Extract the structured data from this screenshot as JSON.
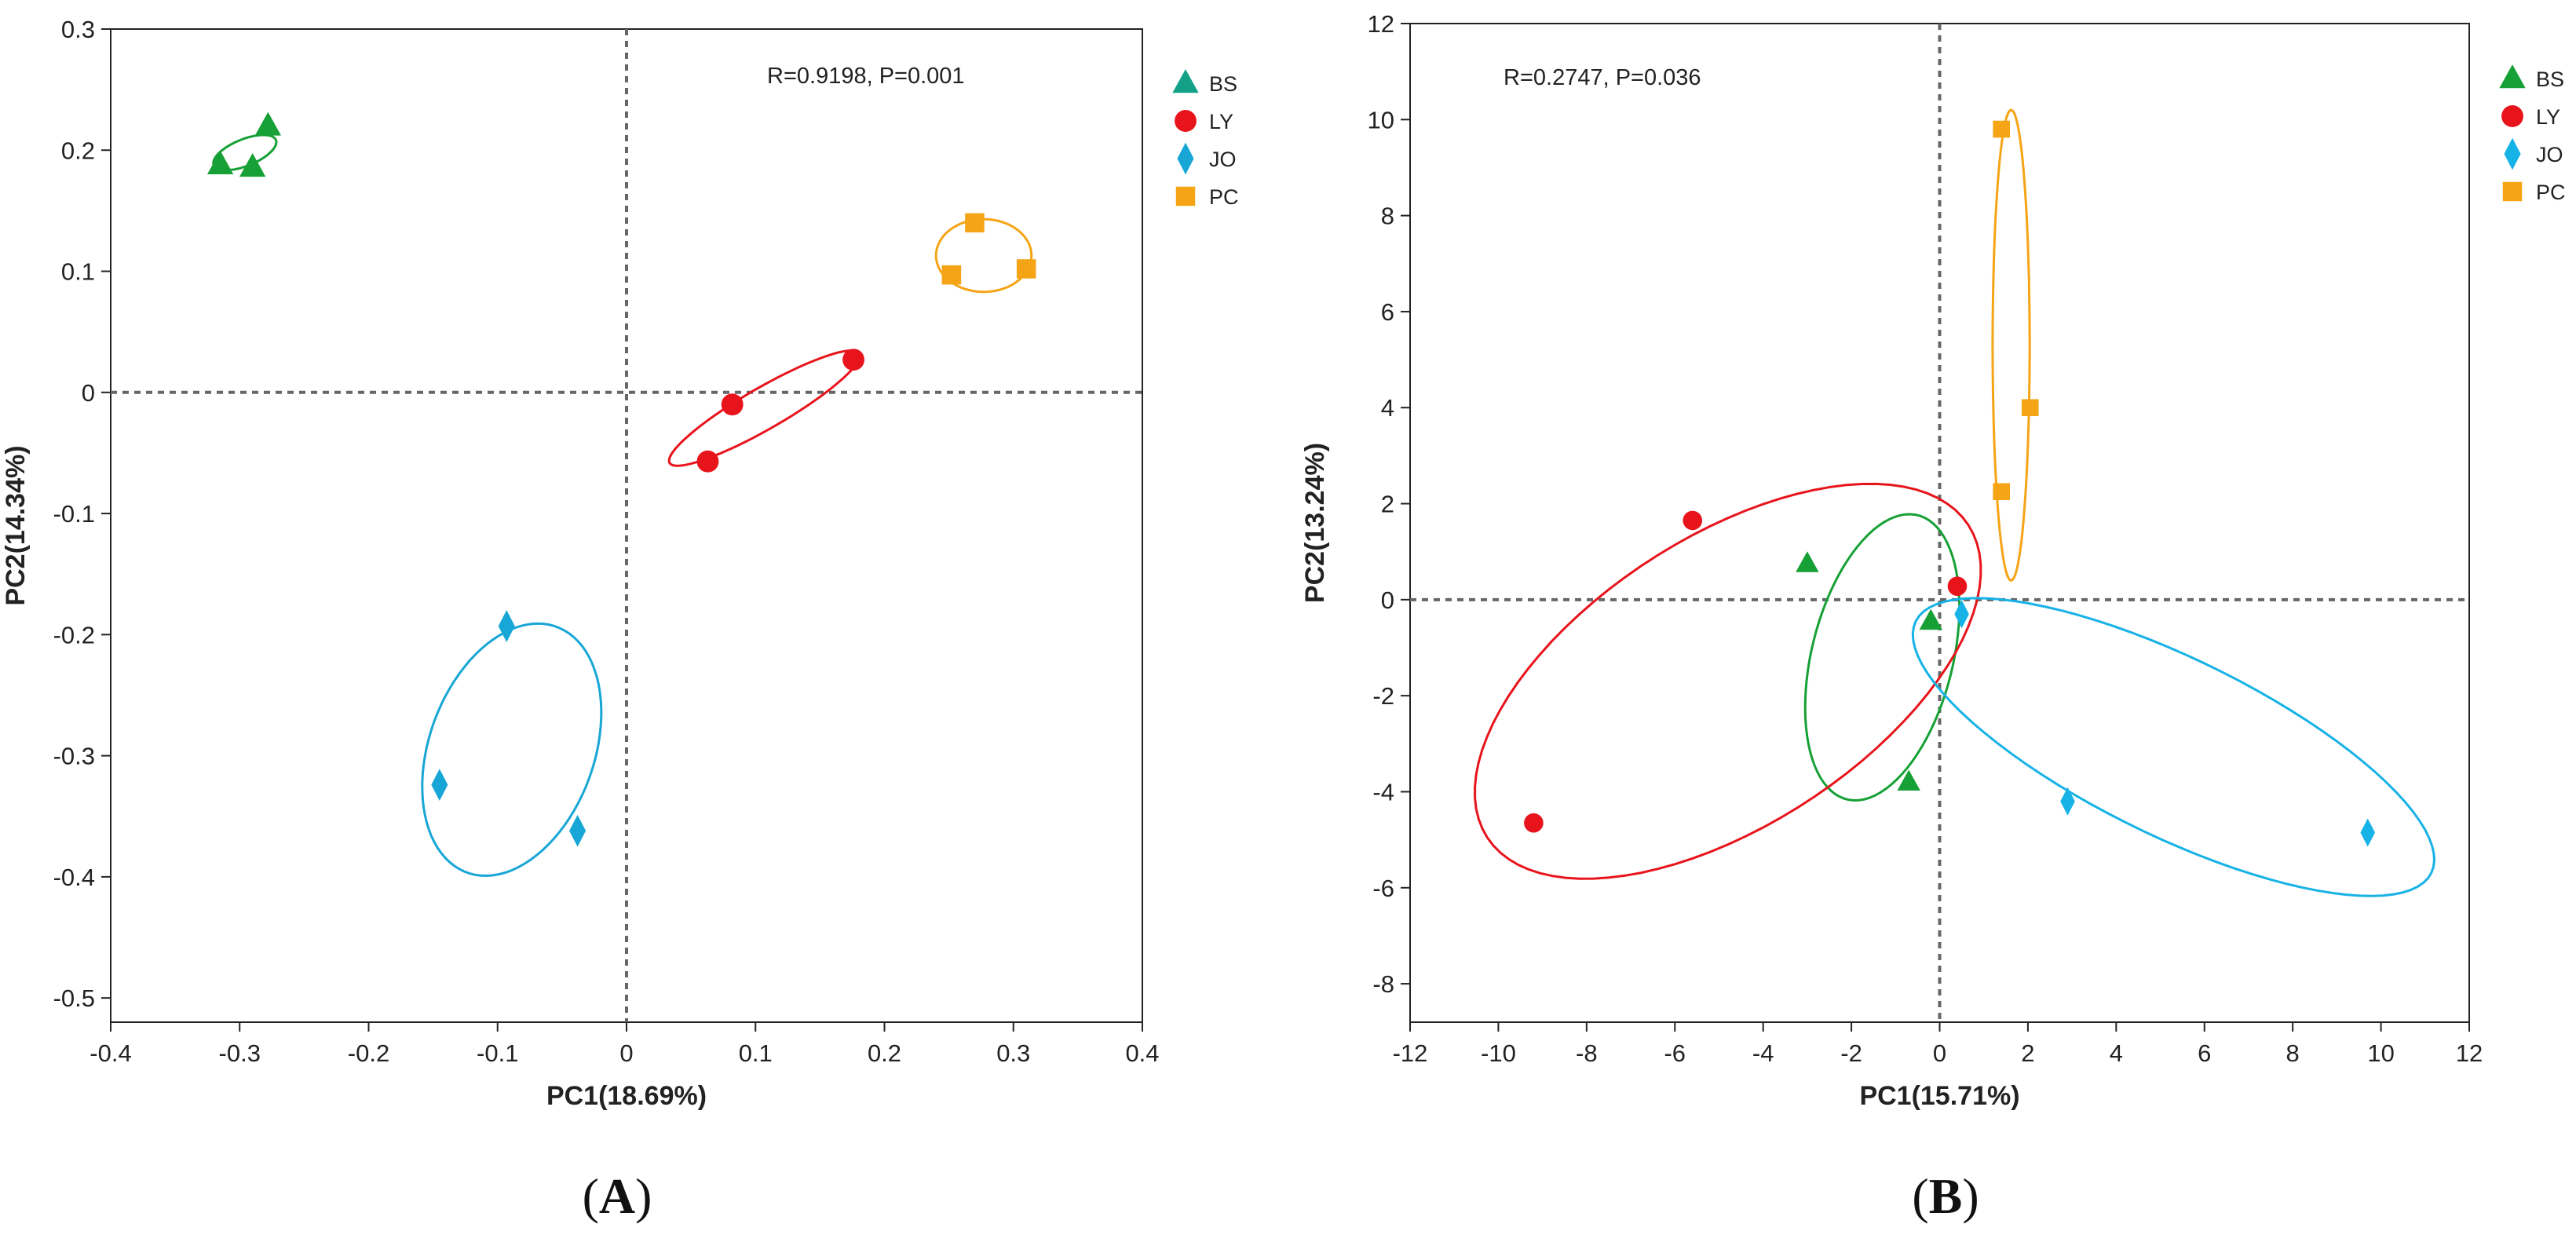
{
  "chart_data": [
    {
      "type": "scatter",
      "panel_label": "A",
      "xlabel": "PC1(18.69%)",
      "ylabel": "PC2(14.34%)",
      "xlim": [
        -0.4,
        0.4
      ],
      "ylim": [
        -0.52,
        0.3
      ],
      "xticks": [
        -0.4,
        -0.3,
        -0.2,
        -0.1,
        0,
        0.1,
        0.2,
        0.3,
        0.4
      ],
      "xtick_labels": [
        "-0.4",
        "-0.3",
        "-0.2",
        "-0.1",
        "0",
        "0.1",
        "0.2",
        "0.3",
        "0.4"
      ],
      "yticks": [
        0.3,
        0.2,
        0.1,
        0,
        -0.1,
        -0.2,
        -0.3,
        -0.4,
        -0.5
      ],
      "ytick_labels": [
        "0.3",
        "0.2",
        "0.1",
        "0",
        "-0.1",
        "-0.2",
        "-0.3",
        "-0.4",
        "-0.5"
      ],
      "annotation": "R=0.9198, P=0.001",
      "legend_position": "top-right",
      "reference_lines": {
        "x": 0,
        "y": 0
      },
      "series": [
        {
          "name": "BS",
          "marker": "triangle",
          "color": "#16a035",
          "legend_color": "#12a086",
          "points": [
            [
              -0.315,
              0.188
            ],
            [
              -0.29,
              0.186
            ],
            [
              -0.278,
              0.22
            ]
          ],
          "ellipse": {
            "cx": -0.296,
            "cy": 0.198,
            "rx": 0.026,
            "ry": 0.011,
            "angle": 22
          }
        },
        {
          "name": "LY",
          "marker": "circle",
          "color": "#e8141c",
          "legend_color": "#e8141c",
          "points": [
            [
              0.063,
              -0.057
            ],
            [
              0.082,
              -0.01
            ],
            [
              0.176,
              0.027
            ]
          ],
          "ellipse": {
            "cx": 0.107,
            "cy": -0.013,
            "rx": 0.085,
            "ry": 0.017,
            "angle": 30
          }
        },
        {
          "name": "JO",
          "marker": "diamond",
          "color": "#17a6d6",
          "legend_color": "#17a6d6",
          "points": [
            [
              -0.093,
              -0.193
            ],
            [
              -0.145,
              -0.324
            ],
            [
              -0.038,
              -0.362
            ]
          ],
          "ellipse": {
            "cx": -0.089,
            "cy": -0.295,
            "rx": 0.064,
            "ry": 0.108,
            "angle": -20
          }
        },
        {
          "name": "PC",
          "marker": "square",
          "color": "#f5a415",
          "legend_color": "#f5a415",
          "points": [
            [
              0.27,
              0.14
            ],
            [
              0.252,
              0.097
            ],
            [
              0.31,
              0.102
            ]
          ],
          "ellipse": {
            "cx": 0.277,
            "cy": 0.113,
            "rx": 0.037,
            "ry": 0.03,
            "angle": 0
          }
        }
      ]
    },
    {
      "type": "scatter",
      "panel_label": "B",
      "xlabel": "PC1(15.71%)",
      "ylabel": "PC2(13.24%)",
      "xlim": [
        -12,
        12
      ],
      "ylim": [
        -8.8,
        12
      ],
      "xticks": [
        -12,
        -10,
        -8,
        -6,
        -4,
        -2,
        0,
        2,
        4,
        6,
        8,
        10,
        12
      ],
      "xtick_labels": [
        "-12",
        "-10",
        "-8",
        "-6",
        "-4",
        "-2",
        "0",
        "2",
        "4",
        "6",
        "8",
        "10",
        "12"
      ],
      "yticks": [
        12,
        10,
        8,
        6,
        4,
        2,
        0,
        -2,
        -4,
        -6,
        -8
      ],
      "ytick_labels": [
        "12",
        "10",
        "8",
        "6",
        "4",
        "2",
        "0",
        "-2",
        "-4",
        "-6",
        "-8"
      ],
      "annotation": "R=0.2747, P=0.036",
      "legend_position": "top-right",
      "reference_lines": {
        "x": 0,
        "y": 0
      },
      "series": [
        {
          "name": "BS",
          "marker": "triangle",
          "color": "#16a035",
          "legend_color": "#16a035",
          "points": [
            [
              -3.0,
              0.75
            ],
            [
              -0.2,
              -0.45
            ],
            [
              -0.7,
              -3.8
            ]
          ],
          "ellipse": {
            "cx": -1.3,
            "cy": -1.2,
            "rx": 1.6,
            "ry": 3.05,
            "angle": -14
          }
        },
        {
          "name": "LY",
          "marker": "circle",
          "color": "#e8141c",
          "legend_color": "#e8141c",
          "points": [
            [
              -5.6,
              1.65
            ],
            [
              -9.2,
              -4.65
            ],
            [
              0.4,
              0.28
            ]
          ],
          "ellipse": {
            "cx": -4.8,
            "cy": -1.7,
            "rx": 6.5,
            "ry": 3.0,
            "angle": 33
          }
        },
        {
          "name": "JO",
          "marker": "diamond",
          "color": "#17b2e6",
          "legend_color": "#17b2e6",
          "points": [
            [
              0.5,
              -0.3
            ],
            [
              2.9,
              -4.2
            ],
            [
              9.7,
              -4.85
            ]
          ],
          "ellipse": {
            "cx": 5.3,
            "cy": -3.07,
            "rx": 6.5,
            "ry": 1.85,
            "angle": -26
          }
        },
        {
          "name": "PC",
          "marker": "square",
          "color": "#f5a415",
          "legend_color": "#f5a415",
          "points": [
            [
              1.4,
              9.8
            ],
            [
              2.05,
              4.0
            ],
            [
              1.4,
              2.25
            ]
          ],
          "ellipse": {
            "cx": 1.62,
            "cy": 5.3,
            "rx": 0.42,
            "ry": 4.9,
            "angle": 0
          }
        }
      ]
    }
  ]
}
